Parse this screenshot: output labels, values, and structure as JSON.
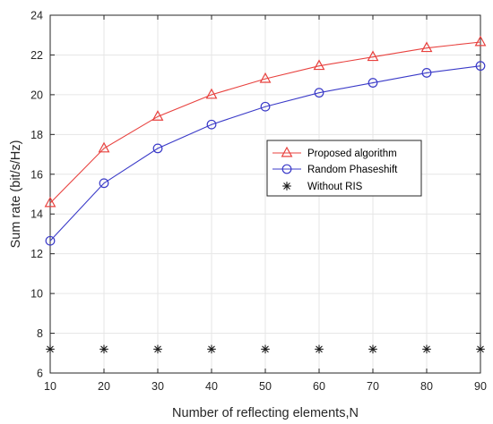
{
  "chart_data": {
    "type": "line",
    "title": "",
    "xlabel": "Number of reflecting elements,N",
    "ylabel": "Sum rate (bit/s/Hz)",
    "xlim": [
      10,
      90
    ],
    "ylim": [
      6,
      24
    ],
    "x": [
      10,
      20,
      30,
      40,
      50,
      60,
      70,
      80,
      90
    ],
    "xticks": [
      "10",
      "20",
      "30",
      "40",
      "50",
      "60",
      "70",
      "80",
      "90"
    ],
    "yticks": [
      "6",
      "8",
      "10",
      "12",
      "14",
      "16",
      "18",
      "20",
      "22",
      "24"
    ],
    "grid": true,
    "legend_position": "right-center",
    "series": [
      {
        "name": "Proposed algorithm",
        "marker": "triangle",
        "color": "#e8413e",
        "values": [
          14.55,
          17.3,
          18.9,
          20.0,
          20.8,
          21.45,
          21.9,
          22.35,
          22.65
        ]
      },
      {
        "name": "Random Phaseshift",
        "marker": "circle",
        "color": "#3a3ac8",
        "values": [
          12.65,
          15.55,
          17.3,
          18.5,
          19.4,
          20.1,
          20.6,
          21.1,
          21.45
        ]
      },
      {
        "name": "Without RIS",
        "marker": "asterisk",
        "color": "#1a1a1a",
        "values": [
          7.2,
          7.2,
          7.2,
          7.2,
          7.2,
          7.2,
          7.2,
          7.2,
          7.2
        ]
      }
    ]
  }
}
